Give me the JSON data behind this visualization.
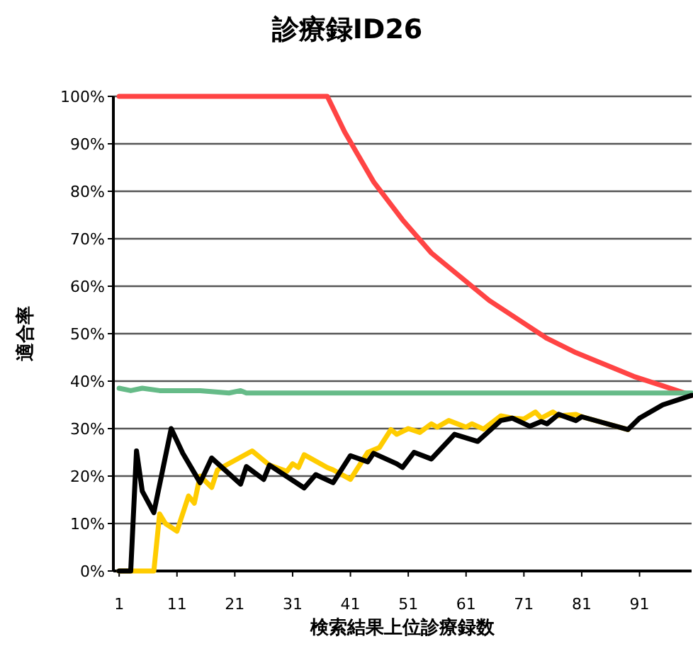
{
  "chart_data": {
    "type": "line",
    "title": "診療録ID26",
    "xlabel": "検索結果上位診療録数",
    "ylabel": "適合率",
    "xlim": [
      0,
      100
    ],
    "xticks": [
      1,
      11,
      21,
      31,
      41,
      51,
      61,
      71,
      81,
      91
    ],
    "ylim": [
      0,
      100
    ],
    "yticks": [
      {
        "value": 0,
        "label": "0%"
      },
      {
        "value": 10,
        "label": "10%"
      },
      {
        "value": 20,
        "label": "20%"
      },
      {
        "value": 30,
        "label": "30%"
      },
      {
        "value": 40,
        "label": "40%"
      },
      {
        "value": 50,
        "label": "50%"
      },
      {
        "value": 60,
        "label": "60%"
      },
      {
        "value": 70,
        "label": "70%"
      },
      {
        "value": 80,
        "label": "80%"
      },
      {
        "value": 90,
        "label": "90%"
      },
      {
        "value": 100,
        "label": "100%"
      }
    ],
    "grid": "y",
    "marker": "none",
    "line_style": "solid",
    "series": [
      {
        "color": "#ff4444",
        "x": [
          1,
          37,
          40,
          45,
          50,
          55,
          60,
          65,
          70,
          75,
          80,
          85,
          90,
          95,
          100
        ],
        "values": [
          100,
          100,
          92.5,
          82,
          74,
          67,
          62,
          57,
          53,
          49,
          46,
          43.5,
          41,
          39,
          37
        ]
      },
      {
        "color": "#66bb88",
        "x": [
          1,
          3,
          5,
          8,
          15,
          20,
          22,
          23,
          100
        ],
        "values": [
          38.5,
          38,
          38.5,
          38,
          38,
          37.5,
          38,
          37.5,
          37.5
        ]
      },
      {
        "color": "#ffcc00",
        "x": [
          1,
          7,
          8,
          9,
          11,
          13,
          14,
          15,
          17,
          18,
          24,
          27,
          30,
          31,
          32,
          33,
          37,
          38,
          41,
          44,
          46,
          48,
          49,
          51,
          53,
          55,
          56,
          58,
          61,
          62,
          64,
          67,
          69,
          71,
          73,
          74,
          76,
          77,
          80,
          81,
          89
        ],
        "values": [
          0,
          0,
          12,
          10,
          8.4,
          15.8,
          14.3,
          20,
          17.6,
          21.3,
          25.3,
          22.3,
          21,
          22.6,
          21.8,
          24.5,
          21.8,
          21.3,
          19.3,
          25,
          26,
          29.8,
          28.8,
          30,
          29.2,
          31,
          30.3,
          31.7,
          30.3,
          31,
          29.9,
          32.7,
          32.2,
          32,
          33.5,
          32.2,
          33.5,
          32.7,
          33,
          32.5,
          29.8
        ]
      },
      {
        "color": "#000000",
        "x": [
          1,
          3,
          4,
          5,
          7,
          10,
          12,
          15,
          17,
          22,
          23,
          26,
          27,
          33,
          35,
          38,
          41,
          44,
          45,
          49,
          50,
          52,
          55,
          59,
          63,
          67,
          69,
          72,
          74,
          75,
          77,
          80,
          81,
          89,
          91,
          95,
          100
        ],
        "values": [
          0,
          0,
          25.3,
          16.8,
          12.3,
          30,
          24.8,
          18.6,
          23.8,
          18.3,
          22,
          19.3,
          22.3,
          17.5,
          20.3,
          18.6,
          24.3,
          23,
          24.8,
          22.6,
          21.8,
          25,
          23.6,
          28.8,
          27.3,
          31.7,
          32.2,
          30.5,
          31.5,
          31,
          33,
          31.7,
          32.5,
          29.8,
          32.2,
          35,
          37
        ]
      }
    ]
  }
}
